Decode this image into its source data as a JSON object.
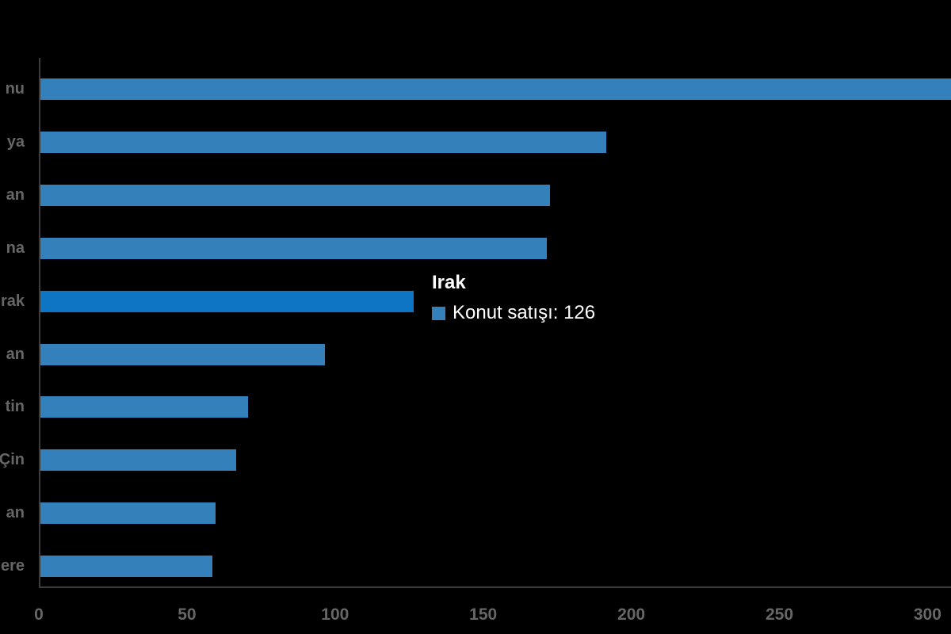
{
  "chart_data": {
    "type": "bar",
    "orientation": "horizontal",
    "title": "",
    "categories_visible": [
      "nu",
      "ya",
      "an",
      "na",
      "rak",
      "an",
      "tin",
      "Çin",
      "an",
      "ere"
    ],
    "categories_note": "category labels are clipped by the left image edge; only the trailing characters listed above are visible",
    "series": [
      {
        "name": "Konut satışı",
        "values": [
          310,
          191,
          172,
          171,
          126,
          96,
          70,
          66,
          59,
          58
        ]
      }
    ],
    "highlighted_index": 4,
    "first_bar_clipped_at_right_edge": true,
    "xticks": [
      "0",
      "50",
      "100",
      "150",
      "200",
      "250",
      "300"
    ],
    "xtick_values": [
      0,
      50,
      100,
      150,
      200,
      250,
      300
    ],
    "xlim": [
      0,
      308
    ],
    "grid": false,
    "legend_position": "none",
    "colors": {
      "bar": "#3380bb",
      "bar_highlight": "#0e74c4",
      "axis_line": "#3c3c3c",
      "tick_label": "#666666",
      "background": "#000000",
      "tooltip_text": "#ffffff"
    }
  },
  "tooltip": {
    "title": "Irak",
    "series_name": "Konut satışı",
    "value": 126,
    "text": "Konut satışı: 126"
  }
}
